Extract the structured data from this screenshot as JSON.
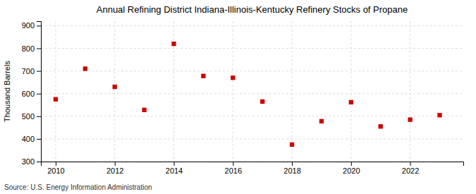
{
  "chart_data": {
    "type": "scatter",
    "title": "Annual Refining District Indiana-Illinois-Kentucky Refinery Stocks of Propane",
    "ylabel": "Thousand Barrels",
    "source": "Source: U.S. Energy Information Administration",
    "x": [
      2010,
      2011,
      2012,
      2013,
      2014,
      2015,
      2016,
      2017,
      2018,
      2019,
      2020,
      2021,
      2022,
      2023
    ],
    "values": [
      575,
      710,
      630,
      528,
      820,
      678,
      670,
      565,
      375,
      478,
      562,
      455,
      485,
      505
    ],
    "color": "#cc0000",
    "marker": "square",
    "xlim": [
      2009.5,
      2023.8
    ],
    "ylim": [
      300,
      920
    ],
    "xticks": [
      2010,
      2012,
      2014,
      2016,
      2018,
      2020,
      2022
    ],
    "yticks": [
      300,
      400,
      500,
      600,
      700,
      800,
      900
    ],
    "grid": true
  }
}
